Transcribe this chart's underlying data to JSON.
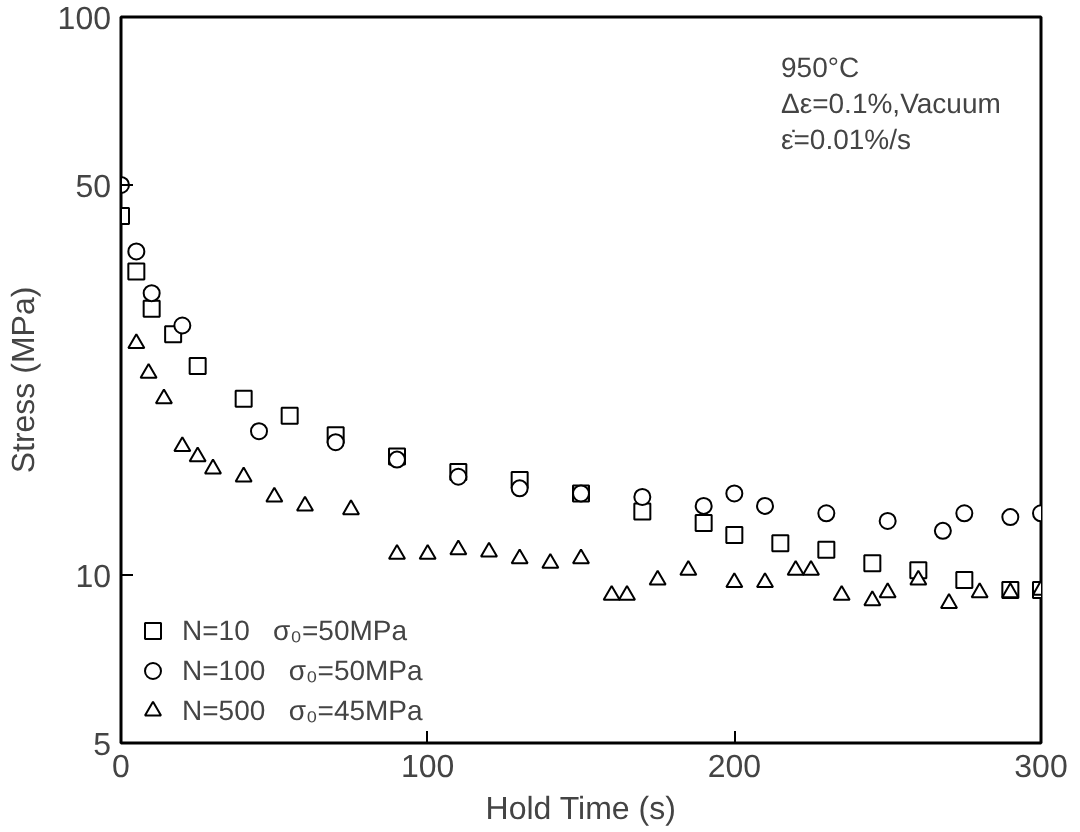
{
  "chart_data": {
    "type": "scatter",
    "xlabel": "Hold Time (s)",
    "ylabel": "Stress (MPa)",
    "annotations": [
      "950°C",
      "Δε=0.1%,Vacuum",
      "ε̇=0.01%/s"
    ],
    "xlim": [
      0,
      300
    ],
    "xticks": [
      0,
      100,
      200,
      300
    ],
    "ylim": [
      5,
      100
    ],
    "yticks": [
      5,
      10,
      50,
      100
    ],
    "log": "y",
    "grid": false,
    "legend": "bottom left",
    "series": [
      {
        "name": "N=10   σ₀=50MPa",
        "color": "#000000",
        "marker": "square",
        "x": [
          0,
          5,
          10,
          17,
          25,
          40,
          55,
          70,
          90,
          110,
          130,
          150,
          170,
          190,
          200,
          215,
          230,
          245,
          260,
          275,
          290,
          300
        ],
        "values": [
          44,
          35,
          30,
          27,
          23.7,
          20.7,
          19.3,
          17.8,
          16.3,
          15.3,
          14.8,
          14,
          13,
          12.4,
          11.8,
          11.4,
          11.1,
          10.5,
          10.2,
          9.8,
          9.4,
          9.4
        ]
      },
      {
        "name": "N=100   σ₀=50MPa",
        "color": "#000000",
        "marker": "circle",
        "x": [
          0,
          5,
          10,
          20,
          45,
          70,
          90,
          110,
          130,
          150,
          170,
          190,
          200,
          210,
          230,
          250,
          268,
          275,
          290,
          300
        ],
        "values": [
          50,
          38,
          32,
          28,
          18.1,
          17.3,
          16.1,
          15,
          14.3,
          14,
          13.8,
          13.3,
          14,
          13.3,
          12.9,
          12.5,
          12,
          12.9,
          12.7,
          12.9
        ]
      },
      {
        "name": "N=500   σ₀=45MPa",
        "color": "#000000",
        "marker": "triangle",
        "x": [
          5,
          9,
          14,
          20,
          25,
          30,
          40,
          50,
          60,
          75,
          90,
          100,
          110,
          120,
          130,
          140,
          150,
          160,
          165,
          175,
          185,
          200,
          210,
          220,
          225,
          235,
          245,
          250,
          260,
          270,
          280,
          290,
          300
        ],
        "values": [
          26,
          23,
          20.7,
          17,
          16.3,
          15.5,
          15,
          13.8,
          13.3,
          13.1,
          10.9,
          10.9,
          11.1,
          11,
          10.7,
          10.5,
          10.7,
          9.2,
          9.2,
          9.8,
          10.2,
          9.7,
          9.7,
          10.2,
          10.2,
          9.2,
          9,
          9.3,
          9.8,
          8.9,
          9.3,
          9.3,
          9.4
        ]
      }
    ]
  }
}
